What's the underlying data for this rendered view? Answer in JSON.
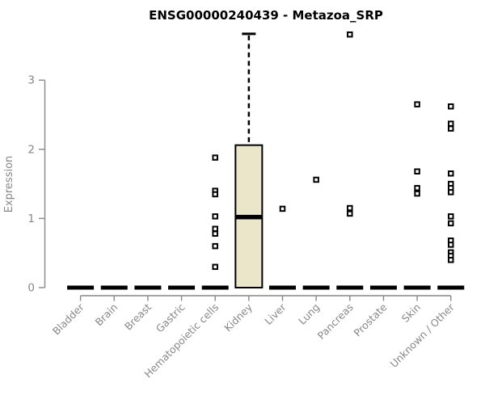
{
  "chart_data": {
    "type": "boxplot",
    "title": "ENSG00000240439 - Metazoa_SRP",
    "ylabel": "Expression",
    "xlabel": "",
    "yticks": [
      0,
      1,
      2,
      3
    ],
    "ylim": [
      0,
      3.75
    ],
    "grid": false,
    "legend": false,
    "categories": [
      "Bladder",
      "Brain",
      "Breast",
      "Gastric",
      "Hematopoietic cells",
      "Kidney",
      "Liver",
      "Lung",
      "Pancreas",
      "Prostate",
      "Skin",
      "Unknown / Other"
    ],
    "boxes": [
      {
        "category": "Bladder",
        "q1": 0,
        "median": 0,
        "q3": 0,
        "whisker_low": 0,
        "whisker_high": 0,
        "outliers": []
      },
      {
        "category": "Brain",
        "q1": 0,
        "median": 0,
        "q3": 0,
        "whisker_low": 0,
        "whisker_high": 0,
        "outliers": []
      },
      {
        "category": "Breast",
        "q1": 0,
        "median": 0,
        "q3": 0,
        "whisker_low": 0,
        "whisker_high": 0,
        "outliers": []
      },
      {
        "category": "Gastric",
        "q1": 0,
        "median": 0,
        "q3": 0,
        "whisker_low": 0,
        "whisker_high": 0,
        "outliers": []
      },
      {
        "category": "Hematopoietic cells",
        "q1": 0,
        "median": 0,
        "q3": 0,
        "whisker_low": 0,
        "whisker_high": 0,
        "outliers": [
          1.88,
          1.4,
          1.35,
          1.03,
          0.85,
          0.78,
          0.6,
          0.3
        ]
      },
      {
        "category": "Kidney",
        "q1": 0,
        "median": 1.02,
        "q3": 2.06,
        "whisker_low": 0,
        "whisker_high": 3.67,
        "outliers": []
      },
      {
        "category": "Liver",
        "q1": 0,
        "median": 0,
        "q3": 0,
        "whisker_low": 0,
        "whisker_high": 0,
        "outliers": [
          1.14
        ]
      },
      {
        "category": "Lung",
        "q1": 0,
        "median": 0,
        "q3": 0,
        "whisker_low": 0,
        "whisker_high": 0,
        "outliers": [
          1.56
        ]
      },
      {
        "category": "Pancreas",
        "q1": 0,
        "median": 0,
        "q3": 0,
        "whisker_low": 0,
        "whisker_high": 0,
        "outliers": [
          3.66,
          1.15,
          1.07
        ]
      },
      {
        "category": "Prostate",
        "q1": 0,
        "median": 0,
        "q3": 0,
        "whisker_low": 0,
        "whisker_high": 0,
        "outliers": []
      },
      {
        "category": "Skin",
        "q1": 0,
        "median": 0,
        "q3": 0,
        "whisker_low": 0,
        "whisker_high": 0,
        "outliers": [
          2.65,
          1.68,
          1.44,
          1.36
        ]
      },
      {
        "category": "Unknown / Other",
        "q1": 0,
        "median": 0,
        "q3": 0,
        "whisker_low": 0,
        "whisker_high": 0,
        "outliers": [
          2.62,
          2.37,
          2.3,
          1.65,
          1.5,
          1.44,
          1.38,
          1.03,
          0.93,
          0.68,
          0.62,
          0.51,
          0.46,
          0.4
        ]
      }
    ],
    "colors": {
      "box_fill": "#EAE6C9",
      "box_border": "#000000",
      "median": "#000000",
      "outlier_stroke": "#000000",
      "outlier_fill": "#FFFFFF",
      "axis": "#878787",
      "tick_label": "#878787",
      "title": "#000000",
      "background": "#FFFFFF"
    }
  }
}
